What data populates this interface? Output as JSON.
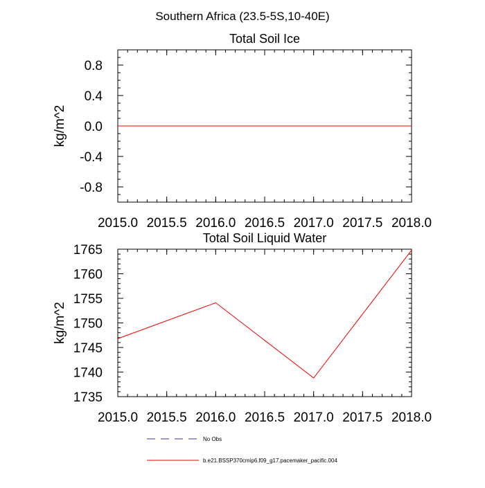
{
  "main_title": "Southern Africa (23.5-5S,10-40E)",
  "legend": {
    "entries": [
      {
        "label": "No Obs",
        "color": "#3333aa",
        "style": "dashed"
      },
      {
        "label": "b.e21.BSSP370cmip6.f09_g17.pacemaker_pacific.004",
        "color": "#ee0000",
        "style": "solid"
      }
    ]
  },
  "chart_data": [
    {
      "type": "line",
      "title": "Total Soil Ice",
      "xlabel": "",
      "ylabel": "kg/m^2",
      "xlim": [
        2015.0,
        2018.0
      ],
      "ylim": [
        -1.0,
        1.0
      ],
      "x_ticks": [
        "2015.0",
        "2015.5",
        "2016.0",
        "2016.5",
        "2017.0",
        "2017.5",
        "2018.0"
      ],
      "x_tick_values": [
        2015.0,
        2015.5,
        2016.0,
        2016.5,
        2017.0,
        2017.5,
        2018.0
      ],
      "y_ticks": [
        "0.8",
        "0.4",
        "0.0",
        "-0.4",
        "-0.8"
      ],
      "y_tick_values": [
        0.8,
        0.4,
        0.0,
        -0.4,
        -0.8
      ],
      "y_minor_values": [
        -1.0,
        -0.9,
        -0.7,
        -0.6,
        -0.5,
        -0.3,
        -0.2,
        -0.1,
        0.1,
        0.2,
        0.3,
        0.5,
        0.6,
        0.7,
        0.9,
        1.0
      ],
      "grid": false,
      "series": [
        {
          "color": "#ee0000",
          "x": [
            2015.0,
            2016.0,
            2017.0,
            2018.0
          ],
          "y": [
            0,
            0,
            0,
            0
          ]
        }
      ]
    },
    {
      "type": "line",
      "title": "Total Soil Liquid Water",
      "xlabel": "",
      "ylabel": "kg/m^2",
      "xlim": [
        2015.0,
        2018.0
      ],
      "ylim": [
        1735,
        1765
      ],
      "x_ticks": [
        "2015.0",
        "2015.5",
        "2016.0",
        "2016.5",
        "2017.0",
        "2017.5",
        "2018.0"
      ],
      "x_tick_values": [
        2015.0,
        2015.5,
        2016.0,
        2016.5,
        2017.0,
        2017.5,
        2018.0
      ],
      "y_ticks": [
        "1765",
        "1760",
        "1755",
        "1750",
        "1745",
        "1740",
        "1735"
      ],
      "y_tick_values": [
        1765,
        1760,
        1755,
        1750,
        1745,
        1740,
        1735
      ],
      "y_minor_values": [
        1736,
        1737,
        1738,
        1739,
        1741,
        1742,
        1743,
        1744,
        1746,
        1747,
        1748,
        1749,
        1751,
        1752,
        1753,
        1754,
        1756,
        1757,
        1758,
        1759,
        1761,
        1762,
        1763,
        1764
      ],
      "grid": false,
      "series": [
        {
          "color": "#ee0000",
          "x": [
            2015.0,
            2016.0,
            2017.0,
            2018.0
          ],
          "y": [
            1746.8,
            1754.1,
            1738.8,
            1764.8
          ]
        }
      ]
    }
  ]
}
